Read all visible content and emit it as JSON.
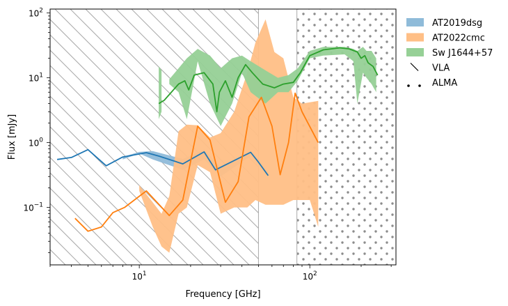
{
  "chart_data": {
    "type": "line",
    "xlabel": "Frequency [GHz]",
    "ylabel": "Flux [mJy]",
    "xscale": "log",
    "yscale": "log",
    "xlim": [
      3.0,
      320
    ],
    "ylim": [
      0.013,
      115
    ],
    "x_ticks": [
      {
        "value": 10,
        "base": "10",
        "exp": "1"
      },
      {
        "value": 100,
        "base": "10",
        "exp": "2"
      }
    ],
    "y_ticks": [
      {
        "value": 0.1,
        "base": "10",
        "exp": "−1"
      },
      {
        "value": 1,
        "base": "10",
        "exp": "0"
      },
      {
        "value": 10,
        "base": "10",
        "exp": "1"
      },
      {
        "value": 100,
        "base": "10",
        "exp": "2"
      }
    ],
    "regions": [
      {
        "name": "VLA",
        "x_range": [
          3.0,
          50
        ],
        "pattern": "hatch",
        "color": "#a9a9a9"
      },
      {
        "name": "ALMA",
        "x_range": [
          84,
          320
        ],
        "pattern": "dots",
        "color": "#888888"
      }
    ],
    "series": [
      {
        "name": "AT2019dsg",
        "color": "#1f77b4",
        "band_color": "#8fbbd9",
        "band": [
          [
            8,
            0.55,
            0.6
          ],
          [
            10,
            0.68,
            0.72
          ],
          [
            12,
            0.55,
            0.74
          ],
          [
            18,
            0.38,
            0.56
          ],
          [
            24,
            0.55,
            0.78
          ],
          [
            30,
            0.3,
            0.42
          ],
          [
            45,
            0.62,
            0.75
          ]
        ],
        "line": [
          [
            3.3,
            0.55
          ],
          [
            4,
            0.59
          ],
          [
            5,
            0.78
          ],
          [
            6.4,
            0.44
          ],
          [
            8,
            0.6
          ],
          [
            11,
            0.7
          ],
          [
            13,
            0.62
          ],
          [
            18,
            0.47
          ],
          [
            24,
            0.72
          ],
          [
            28,
            0.38
          ],
          [
            45,
            0.71
          ],
          [
            50,
            0.5
          ],
          [
            57,
            0.31
          ]
        ]
      },
      {
        "name": "AT2022cmc",
        "color": "#ff7f0e",
        "band_color": "#ffbf86",
        "band": [
          [
            10,
            0.18,
            0.22
          ],
          [
            12,
            0.05,
            0.12
          ],
          [
            13.5,
            0.025,
            0.08
          ],
          [
            15,
            0.02,
            0.15
          ],
          [
            17,
            0.08,
            1.5
          ],
          [
            19,
            0.1,
            1.9
          ],
          [
            22,
            0.45,
            1.85
          ],
          [
            26,
            0.35,
            1.2
          ],
          [
            30,
            0.08,
            1.4
          ],
          [
            36,
            0.1,
            3.0
          ],
          [
            43,
            0.1,
            12.0
          ],
          [
            48,
            0.13,
            35.0
          ],
          [
            55,
            0.11,
            80.0
          ],
          [
            62,
            0.11,
            25.0
          ],
          [
            70,
            0.11,
            20.0
          ],
          [
            80,
            0.13,
            5.0
          ],
          [
            90,
            0.13,
            4.0
          ],
          [
            100,
            0.13,
            4.2
          ],
          [
            112,
            0.05,
            4.4
          ]
        ],
        "line": [
          [
            4.2,
            0.068
          ],
          [
            5,
            0.043
          ],
          [
            6,
            0.05
          ],
          [
            7,
            0.083
          ],
          [
            8.2,
            0.1
          ],
          [
            11,
            0.18
          ],
          [
            15,
            0.075
          ],
          [
            18,
            0.13
          ],
          [
            22,
            1.8
          ],
          [
            26,
            1.1
          ],
          [
            32,
            0.12
          ],
          [
            38,
            0.25
          ],
          [
            44,
            2.5
          ],
          [
            52,
            5.0
          ],
          [
            60,
            1.8
          ],
          [
            67,
            0.32
          ],
          [
            75,
            1.0
          ],
          [
            82,
            5.8
          ],
          [
            90,
            3.0
          ],
          [
            112,
            1.0
          ]
        ]
      },
      {
        "name": "Sw J1644+57",
        "color": "#2ca02c",
        "band_color": "#96d096",
        "band": [
          [
            15,
            8,
            9.5
          ],
          [
            17,
            6,
            14
          ],
          [
            19,
            2.3,
            20
          ],
          [
            22,
            18,
            28
          ],
          [
            26,
            4,
            22
          ],
          [
            30,
            1.8,
            14
          ],
          [
            35,
            4,
            20
          ],
          [
            40,
            12,
            22
          ],
          [
            45,
            6,
            18
          ],
          [
            55,
            4,
            13
          ],
          [
            65,
            6,
            10
          ],
          [
            75,
            6,
            11
          ],
          [
            85,
            9,
            14
          ],
          [
            100,
            20,
            26
          ],
          [
            120,
            22,
            30
          ],
          [
            160,
            23,
            30
          ],
          [
            180,
            18,
            28
          ],
          [
            190,
            4,
            26
          ],
          [
            205,
            12,
            30
          ],
          [
            215,
            10,
            26
          ],
          [
            230,
            8,
            26
          ],
          [
            245,
            6,
            20
          ]
        ],
        "line": [
          [
            13,
            4
          ],
          [
            14,
            4.5
          ],
          [
            17,
            8
          ],
          [
            18.5,
            9
          ],
          [
            19.5,
            6.5
          ],
          [
            21,
            11
          ],
          [
            24,
            12
          ],
          [
            27,
            8
          ],
          [
            28.5,
            3
          ],
          [
            29.5,
            6
          ],
          [
            32,
            9
          ],
          [
            35,
            5
          ],
          [
            38,
            10
          ],
          [
            42,
            16
          ],
          [
            46,
            12
          ],
          [
            53,
            8
          ],
          [
            62,
            7
          ],
          [
            70,
            8
          ],
          [
            80,
            8.5
          ],
          [
            88,
            12
          ],
          [
            100,
            22
          ],
          [
            120,
            27
          ],
          [
            150,
            29
          ],
          [
            170,
            28
          ],
          [
            190,
            25
          ],
          [
            200,
            20
          ],
          [
            210,
            22
          ],
          [
            220,
            17
          ],
          [
            235,
            15
          ],
          [
            250,
            11
          ]
        ],
        "extra_bands": [
          [
            [
              13,
              2.3,
              15
            ],
            [
              13.5,
              3,
              13
            ]
          ]
        ]
      }
    ],
    "legend": {
      "placement": "outside-right",
      "entries": [
        "AT2019dsg",
        "AT2022cmc",
        "Sw J1644+57",
        "VLA",
        "ALMA"
      ]
    }
  }
}
